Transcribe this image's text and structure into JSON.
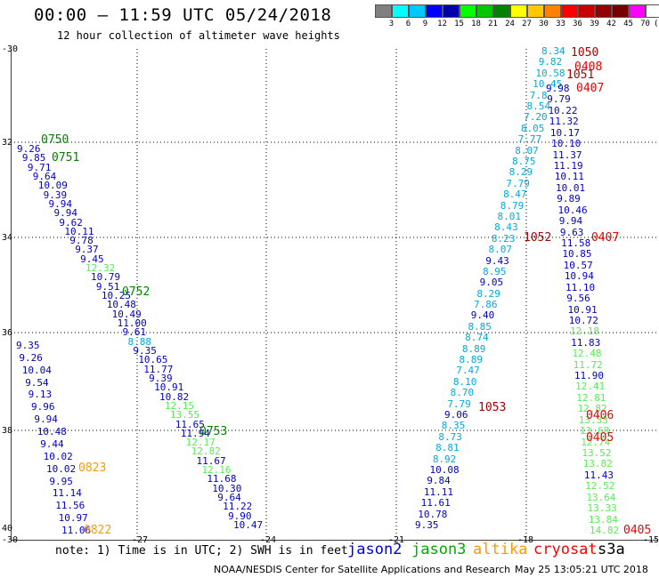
{
  "header": {
    "title": "00:00 – 11:59 UTC 05/24/2018",
    "subtitle": "12 hour collection of altimeter wave heights"
  },
  "legend": {
    "colors": [
      "#808080",
      "#00ffff",
      "#00c8ff",
      "#0000ff",
      "#0000aa",
      "#00ff00",
      "#00c800",
      "#008200",
      "#ffff00",
      "#ffc800",
      "#ff8200",
      "#ff0000",
      "#c80000",
      "#960000",
      "#780000",
      "#ff00ff",
      "#ffffff",
      "#000000"
    ],
    "labels": [
      "3",
      "6",
      "9",
      "12",
      "15",
      "18",
      "21",
      "24",
      "27",
      "30",
      "33",
      "36",
      "39",
      "42",
      "45",
      "70",
      "(ft)"
    ]
  },
  "axes": {
    "y_labels": [
      "-30",
      "32",
      "34",
      "36",
      "38",
      "40"
    ],
    "x_labels": [
      "-30",
      "-27",
      "-24",
      "-21",
      "-18",
      "-15"
    ]
  },
  "tracks": {
    "track_a": [
      "9.26",
      "9.85",
      "9.71",
      "9.64",
      "10.09",
      "9.39",
      "9.94",
      "9.94",
      "9.62",
      "10.11",
      "9.78",
      "9.37",
      "9.45",
      "12.32",
      "10.79",
      "9.51",
      "10.25",
      "10.48",
      "10.49",
      "11.00",
      "9.61",
      "8.88",
      "9.35",
      "10.65",
      "11.77",
      "9.39",
      "10.91",
      "10.82",
      "12.15",
      "13.55",
      "11.65",
      "11.94",
      "12.17",
      "12.82",
      "11.67",
      "12.16",
      "11.68",
      "10.30",
      "9.64",
      "11.22",
      "9.90",
      "10.47"
    ],
    "track_b": [
      "9.35",
      "9.26",
      "10.04",
      "9.54",
      "9.13",
      "9.96",
      "9.94",
      "10.48",
      "9.44",
      "10.02",
      "10.02",
      "9.95",
      "11.14",
      "11.56",
      "10.97",
      "11.06"
    ],
    "track_c": [
      "8.34",
      "9.82",
      "10.58",
      "10.45",
      "7.8",
      "8.54",
      "7.20",
      "8.05",
      "7.77",
      "8.07",
      "8.75",
      "8.29",
      "7.79",
      "8.47",
      "8.79",
      "8.01",
      "8.43",
      "8.23",
      "8.07",
      "9.43",
      "8.95",
      "9.05",
      "8.29",
      "7.86",
      "9.40",
      "8.85",
      "8.74",
      "8.89",
      "8.89",
      "7.47",
      "8.10",
      "8.70",
      "7.79",
      "9.06",
      "8.35",
      "8.73",
      "8.81",
      "8.92",
      "10.08",
      "9.84",
      "11.11",
      "11.61",
      "10.78",
      "9.35"
    ],
    "track_d": [
      "9.98",
      "9.79",
      "10.22",
      "11.32",
      "10.17",
      "10.10",
      "11.37",
      "11.19",
      "10.11",
      "10.01",
      "9.89",
      "10.46",
      "9.94",
      "9.63",
      "11.58",
      "10.85",
      "10.57",
      "10.94",
      "11.10",
      "9.56",
      "10.91",
      "10.72",
      "12.18",
      "11.83",
      "12.48",
      "11.72",
      "11.90",
      "12.41",
      "12.81",
      "12.82",
      "13.33",
      "13.68",
      "12.74",
      "13.52",
      "13.82",
      "11.43",
      "12.52",
      "13.64",
      "13.33",
      "13.84",
      "14.82"
    ]
  },
  "time_labels": [
    {
      "text": "0750",
      "color": "#008200"
    },
    {
      "text": "0751",
      "color": "#008200"
    },
    {
      "text": "0752",
      "color": "#008200"
    },
    {
      "text": "0753",
      "color": "#008200"
    },
    {
      "text": "0823",
      "color": "#ff9900"
    },
    {
      "text": "0822",
      "color": "#ff9900"
    },
    {
      "text": "1050",
      "color": "#aa0000"
    },
    {
      "text": "0408",
      "color": "#ee0000"
    },
    {
      "text": "1051",
      "color": "#aa0000"
    },
    {
      "text": "0407",
      "color": "#ee0000"
    },
    {
      "text": "1052",
      "color": "#aa0000"
    },
    {
      "text": "0407",
      "color": "#ee0000"
    },
    {
      "text": "1053",
      "color": "#aa0000"
    },
    {
      "text": "0406",
      "color": "#ee0000"
    },
    {
      "text": "0405",
      "color": "#ee0000"
    },
    {
      "text": "0405",
      "color": "#ee0000"
    }
  ],
  "footer": {
    "note": "note:  1) Time is in UTC;  2) SWH is in feet",
    "satellites": [
      {
        "name": "jason2",
        "color": "#0000dd"
      },
      {
        "name": "jason3",
        "color": "#00aa00"
      },
      {
        "name": "altika",
        "color": "#ff9900"
      },
      {
        "name": "cryosat",
        "color": "#ff0000"
      },
      {
        "name": "s3a",
        "color": "#000000"
      }
    ],
    "credit": "NOAA/NESDIS Center for Satellite Applications and Research",
    "generated": "May 25 13:05:21 UTC 2018"
  }
}
